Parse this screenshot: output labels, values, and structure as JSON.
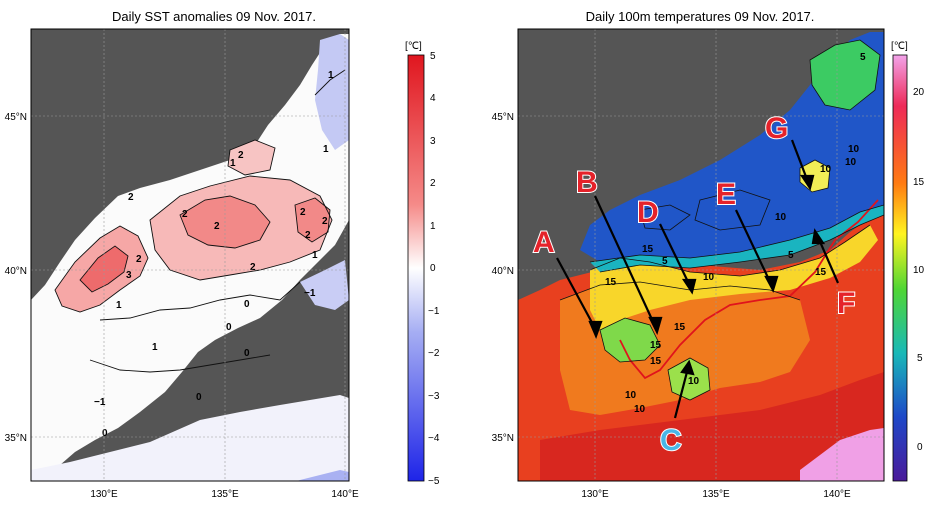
{
  "left_panel": {
    "title": "Daily SST anomalies 09 Nov. 2017.",
    "unit": "[℃]",
    "colorbar_ticks": [
      "5",
      "4",
      "3",
      "2",
      "1",
      "0",
      "−1",
      "−2",
      "−3",
      "−4",
      "−5"
    ],
    "lat_labels": [
      "45°N",
      "40°N",
      "35°N"
    ],
    "lon_labels": [
      "130°E",
      "135°E",
      "140°E"
    ],
    "contour_labels": [
      "0",
      "1",
      "0",
      "1",
      "1",
      "2",
      "2",
      "2",
      "2",
      "2",
      "2",
      "2",
      "2",
      "2",
      "3",
      "1",
      "1",
      "0",
      "−1",
      "0",
      "1",
      "0",
      "−1",
      "0",
      "0"
    ],
    "colors": {
      "positive": "#e8383a",
      "negative": "#3c49e6",
      "neutral": "#ffffff",
      "land": "#555555"
    }
  },
  "right_panel": {
    "title": "Daily 100m temperatures 09 Nov. 2017.",
    "unit": "[℃]",
    "colorbar_ticks": [
      "20",
      "15",
      "10",
      "5",
      "0"
    ],
    "lat_labels": [
      "45°N",
      "40°N",
      "35°N"
    ],
    "lon_labels": [
      "130°E",
      "135°E",
      "140°E"
    ],
    "contour_labels": [
      "5",
      "10",
      "10",
      "10",
      "5",
      "10",
      "15",
      "15",
      "15",
      "15",
      "15",
      "15",
      "10",
      "10",
      "10",
      "5",
      "10"
    ],
    "annotations": [
      "A",
      "B",
      "C",
      "D",
      "E",
      "F",
      "G"
    ],
    "colors": {
      "warm": "#e53b1d",
      "cold": "#1f55c8",
      "annotation": "#e5222a",
      "annotation_c": "#49b6e6",
      "land": "#555555"
    }
  }
}
